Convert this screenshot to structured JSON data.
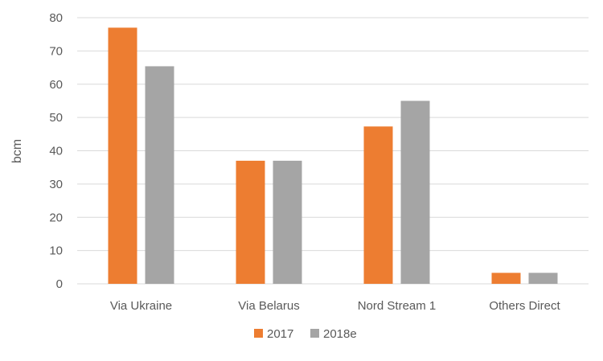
{
  "chart_data": {
    "type": "bar",
    "title": "",
    "xlabel": "",
    "ylabel": "bcm",
    "categories": [
      "Via Ukraine",
      "Via Belarus",
      "Nord Stream 1",
      "Others Direct"
    ],
    "series": [
      {
        "name": "2017",
        "values": [
          77,
          37,
          47.3,
          3.3
        ],
        "color": "#ED7D31"
      },
      {
        "name": "2018e",
        "values": [
          65.4,
          37,
          55,
          3.3
        ],
        "color": "#A5A5A5"
      }
    ],
    "ylim": [
      0,
      80
    ],
    "yticks": [
      0,
      10,
      20,
      30,
      40,
      50,
      60,
      70,
      80
    ],
    "grid": true,
    "legend": "bottom",
    "gridline_color": "#D9D9D9"
  }
}
